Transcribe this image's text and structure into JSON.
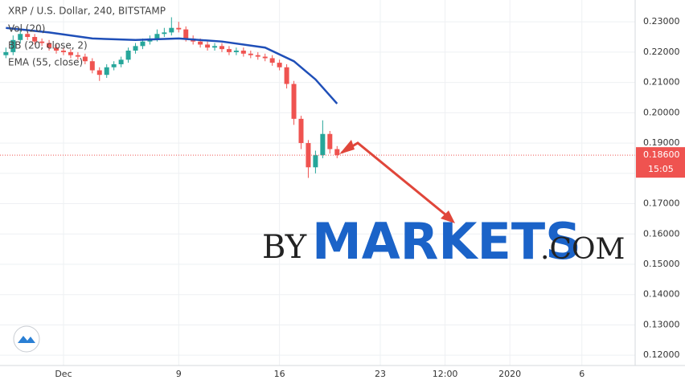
{
  "chart_data": {
    "type": "candlestick",
    "legend": [
      "XRP / U.S. Dollar, 240, BITSTAMP",
      "Vol (20)",
      "BB (20, close, 2)",
      "EMA (55, close)"
    ],
    "x": [
      -3,
      -2.5,
      -2,
      -1.5,
      -1,
      -0.5,
      0,
      0.5,
      1,
      1.5,
      2,
      2.5,
      3,
      3.5,
      4,
      4.5,
      5,
      5.5,
      6,
      6.5,
      7,
      7.5,
      8,
      8.5,
      9,
      9.5,
      10,
      10.5,
      11,
      11.5,
      12,
      12.5,
      13,
      13.5,
      14,
      14.5,
      15,
      15.5,
      16,
      16.5,
      17,
      17.5,
      18,
      18.5,
      19,
      19.5,
      20
    ],
    "open": [
      0.219,
      0.22,
      0.224,
      0.226,
      0.225,
      0.2235,
      0.223,
      0.2215,
      0.2205,
      0.22,
      0.219,
      0.2185,
      0.217,
      0.214,
      0.2125,
      0.215,
      0.216,
      0.2175,
      0.2205,
      0.222,
      0.2235,
      0.2245,
      0.226,
      0.2265,
      0.228,
      0.2275,
      0.2245,
      0.2235,
      0.2225,
      0.2215,
      0.222,
      0.221,
      0.22,
      0.2205,
      0.2195,
      0.219,
      0.2185,
      0.218,
      0.2165,
      0.215,
      0.2095,
      0.198,
      0.19,
      0.182,
      0.186,
      0.193,
      0.188
    ],
    "high": [
      0.2215,
      0.2255,
      0.2275,
      0.227,
      0.226,
      0.2245,
      0.224,
      0.2225,
      0.2215,
      0.221,
      0.22,
      0.2195,
      0.218,
      0.215,
      0.216,
      0.217,
      0.2185,
      0.2215,
      0.223,
      0.2245,
      0.2255,
      0.2275,
      0.228,
      0.2315,
      0.23,
      0.2285,
      0.2255,
      0.2245,
      0.2235,
      0.223,
      0.223,
      0.222,
      0.2215,
      0.2215,
      0.2205,
      0.22,
      0.2195,
      0.219,
      0.2175,
      0.216,
      0.2105,
      0.199,
      0.191,
      0.1875,
      0.1975,
      0.194,
      0.189
    ],
    "low": [
      0.218,
      0.219,
      0.223,
      0.224,
      0.2225,
      0.222,
      0.2205,
      0.2195,
      0.219,
      0.218,
      0.2175,
      0.216,
      0.213,
      0.2105,
      0.2115,
      0.214,
      0.215,
      0.2165,
      0.2195,
      0.221,
      0.2225,
      0.2235,
      0.225,
      0.2255,
      0.2265,
      0.2235,
      0.2225,
      0.2215,
      0.2205,
      0.2205,
      0.22,
      0.219,
      0.219,
      0.2185,
      0.218,
      0.2175,
      0.217,
      0.2155,
      0.214,
      0.208,
      0.196,
      0.188,
      0.1785,
      0.18,
      0.185,
      0.1865,
      0.185
    ],
    "close": [
      0.22,
      0.224,
      0.226,
      0.225,
      0.2235,
      0.223,
      0.2215,
      0.2205,
      0.22,
      0.219,
      0.2185,
      0.217,
      0.214,
      0.2125,
      0.215,
      0.216,
      0.2175,
      0.2205,
      0.222,
      0.2235,
      0.2245,
      0.226,
      0.2265,
      0.228,
      0.2275,
      0.2245,
      0.2235,
      0.2225,
      0.2215,
      0.222,
      0.221,
      0.22,
      0.2205,
      0.2195,
      0.219,
      0.2185,
      0.218,
      0.2165,
      0.215,
      0.2095,
      0.198,
      0.19,
      0.182,
      0.186,
      0.193,
      0.188,
      0.186
    ],
    "up_color": "#26a69a",
    "down_color": "#ef5350",
    "ema": {
      "x": [
        -3,
        0,
        3,
        6,
        9,
        12,
        15,
        17,
        18.5,
        20
      ],
      "values": [
        0.228,
        0.2265,
        0.2245,
        0.224,
        0.2245,
        0.2235,
        0.2215,
        0.217,
        0.211,
        0.203
      ],
      "color": "#1f4fb8"
    },
    "last_price": {
      "value": 0.186,
      "label": "0.18600"
    },
    "countdown": "15:05",
    "xlim": [
      -3.41,
      40.7
    ],
    "xticks": [
      {
        "value": 1,
        "label": "Dec"
      },
      9,
      16,
      23,
      {
        "value": 27.5,
        "label": "12:00"
      },
      {
        "value": 32,
        "label": "2020"
      },
      {
        "value": 37,
        "label": "6"
      }
    ],
    "ylim": [
      0.1166,
      0.2372
    ],
    "yticks": [
      {
        "value": 0.12,
        "label": "0.12000"
      },
      {
        "value": 0.13,
        "label": "0.13000"
      },
      {
        "value": 0.14,
        "label": "0.14000"
      },
      {
        "value": 0.15,
        "label": "0.15000"
      },
      {
        "value": 0.16,
        "label": "0.16000"
      },
      {
        "value": 0.17,
        "label": "0.17000"
      },
      {
        "value": 0.18,
        "label": "0.18000"
      },
      {
        "value": 0.19,
        "label": "0.19000"
      },
      {
        "value": 0.2,
        "label": "0.20000"
      },
      {
        "value": 0.21,
        "label": "0.21000"
      },
      {
        "value": 0.22,
        "label": "0.22000"
      },
      {
        "value": 0.23,
        "label": "0.23000"
      }
    ],
    "grid": true,
    "watermark": {
      "prefix": "BY",
      "main": "MARKETS",
      "suffix": ".COM"
    }
  }
}
